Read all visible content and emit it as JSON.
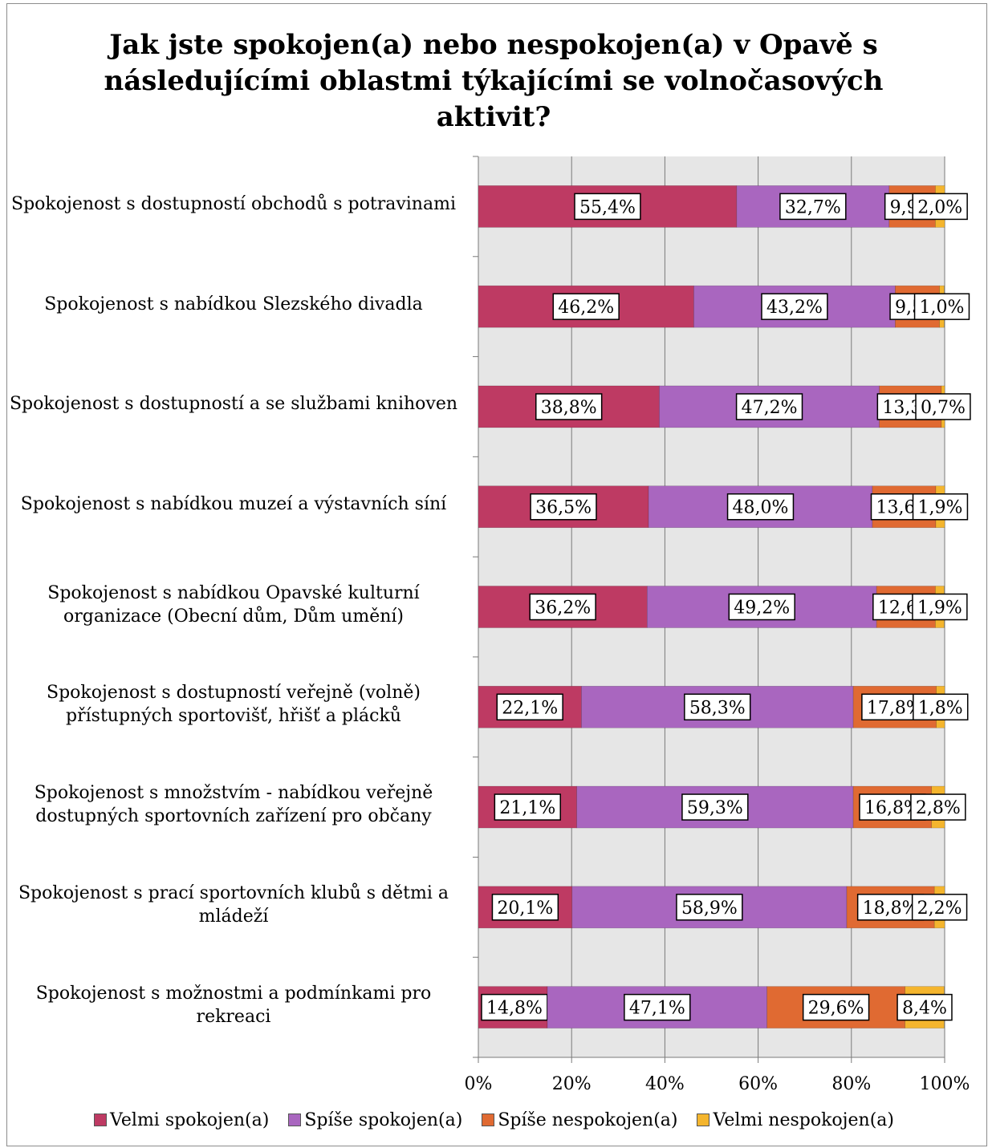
{
  "chart_data": {
    "type": "bar",
    "orientation": "horizontal",
    "stacked": "percent",
    "title": "Jak jste spokojen(a) nebo nespokojen(a) v Opavě s následujícími oblastmi týkajícími se volnočasových aktivit?",
    "categories": [
      "Spokojenost s dostupností obchodů s potravinami",
      "Spokojenost s nabídkou Slezského divadla",
      "Spokojenost s dostupností a se službami knihoven",
      "Spokojenost s nabídkou muzeí a výstavních síní",
      "Spokojenost s nabídkou Opavské kulturní organizace (Obecní dům, Dům umění)",
      "Spokojenost s dostupností veřejně (volně) přístupných sportovišť, hřišť a plácků",
      "Spokojenost s množstvím - nabídkou veřejně dostupných sportovních zařízení pro občany",
      "Spokojenost s prací sportovních klubů s dětmi a mládeží",
      "Spokojenost s možnostmi a podmínkami pro rekreaci"
    ],
    "series": [
      {
        "name": "Velmi spokojen(a)",
        "color": "#be3a63",
        "values": [
          55.4,
          46.2,
          38.8,
          36.5,
          36.2,
          22.1,
          21.1,
          20.1,
          14.8
        ],
        "labels": [
          "55,4%",
          "46,2%",
          "38,8%",
          "36,5%",
          "36,2%",
          "22,1%",
          "21,1%",
          "20,1%",
          "14,8%"
        ]
      },
      {
        "name": "Spíše spokojen(a)",
        "color": "#a966bf",
        "values": [
          32.7,
          43.2,
          47.2,
          48.0,
          49.2,
          58.3,
          59.3,
          58.9,
          47.1
        ],
        "labels": [
          "32,7%",
          "43,2%",
          "47,2%",
          "48,0%",
          "49,2%",
          "58,3%",
          "59,3%",
          "58,9%",
          "47,1%"
        ]
      },
      {
        "name": "Spíše nespokojen(a)",
        "color": "#e06a32",
        "values": [
          9.9,
          9.5,
          13.3,
          13.6,
          12.6,
          17.8,
          16.8,
          18.8,
          29.6
        ],
        "labels": [
          "9,9%",
          "9,5%",
          "13,3%",
          "13,6%",
          "12,6%",
          "17,8%",
          "16,8%",
          "18,8%",
          "29,6%"
        ]
      },
      {
        "name": "Velmi nespokojen(a)",
        "color": "#f4b52e",
        "values": [
          2.0,
          1.0,
          0.7,
          1.9,
          1.9,
          1.8,
          2.8,
          2.2,
          8.4
        ],
        "labels": [
          "2,0%",
          "1,0%",
          "0,7%",
          "1,9%",
          "1,9%",
          "1,8%",
          "2,8%",
          "2,2%",
          "8,4%"
        ]
      }
    ],
    "xaxis": {
      "ticks": [
        "0%",
        "20%",
        "40%",
        "60%",
        "80%",
        "100%"
      ],
      "range": [
        0,
        100
      ]
    },
    "grid": true,
    "legend_position": "bottom"
  }
}
